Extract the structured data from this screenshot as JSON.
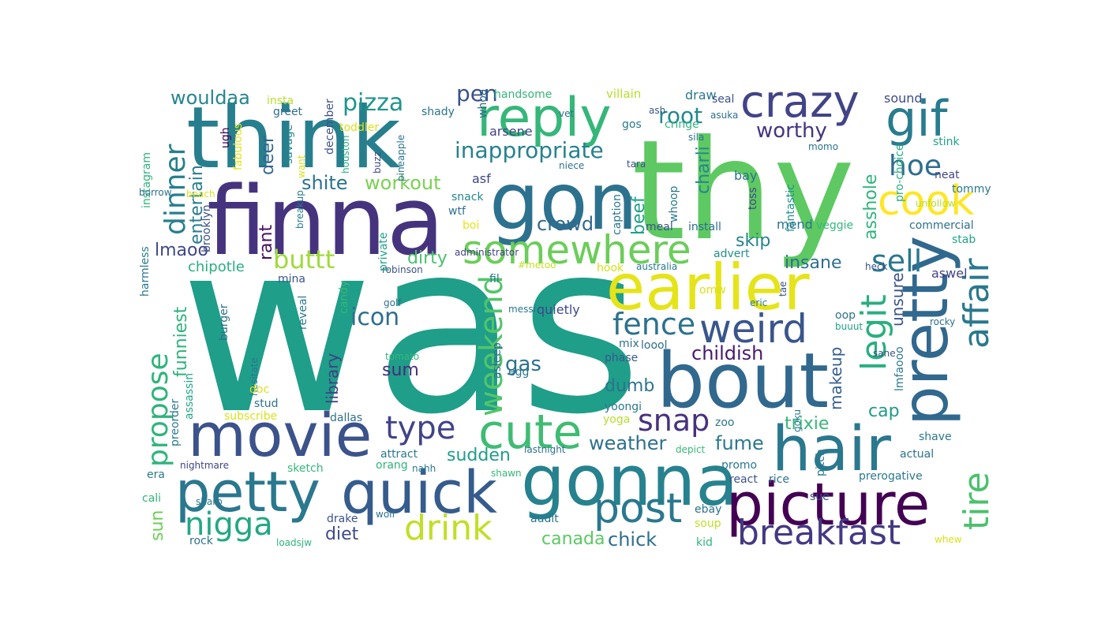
{
  "words": [
    {
      "text": "was",
      "color": "#1f9e89"
    },
    {
      "text": "thy",
      "color": "#5ec962"
    },
    {
      "text": "finna",
      "color": "#46337e"
    },
    {
      "text": "think",
      "color": "#277f8e"
    },
    {
      "text": "gon",
      "color": "#2c728e"
    },
    {
      "text": "bout",
      "color": "#31688e"
    },
    {
      "text": "earlier",
      "color": "#e5e419"
    },
    {
      "text": "gonna",
      "color": "#26828e"
    },
    {
      "text": "movie",
      "color": "#3b528b"
    },
    {
      "text": "hair",
      "color": "#2a788e"
    },
    {
      "text": "picture",
      "color": "#440154"
    },
    {
      "text": "pretty",
      "color": "#31688e"
    },
    {
      "text": "quick",
      "color": "#365c8d"
    },
    {
      "text": "petty",
      "color": "#2a788e"
    },
    {
      "text": "reply",
      "color": "#35b779"
    },
    {
      "text": "crazy",
      "color": "#414487"
    },
    {
      "text": "gif",
      "color": "#287c8e"
    },
    {
      "text": "cook",
      "color": "#fde725"
    },
    {
      "text": "somewhere",
      "color": "#6ccd5a"
    },
    {
      "text": "cute",
      "color": "#3fbc73"
    },
    {
      "text": "weird",
      "color": "#39568c"
    },
    {
      "text": "post",
      "color": "#2a788e"
    },
    {
      "text": "breakfast",
      "color": "#443983"
    },
    {
      "text": "weekend",
      "color": "#52c569"
    },
    {
      "text": "legit",
      "color": "#29af7f"
    },
    {
      "text": "affair",
      "color": "#2a788e"
    },
    {
      "text": "tire",
      "color": "#4ac16d"
    },
    {
      "text": "drink",
      "color": "#c0df25"
    },
    {
      "text": "nigga",
      "color": "#22a884"
    },
    {
      "text": "dinner",
      "color": "#277f8e"
    },
    {
      "text": "propose",
      "color": "#2fb47c"
    },
    {
      "text": "type",
      "color": "#414487"
    },
    {
      "text": "snap",
      "color": "#46327e"
    },
    {
      "text": "fence",
      "color": "#2c728e"
    },
    {
      "text": "sell",
      "color": "#2a788e"
    },
    {
      "text": "hoe",
      "color": "#2e6e8e"
    },
    {
      "text": "buttt",
      "color": "#a0da39"
    },
    {
      "text": "inappropriate",
      "color": "#26828e"
    },
    {
      "text": "pizza",
      "color": "#1f958b"
    },
    {
      "text": "pen",
      "color": "#3b528b"
    },
    {
      "text": "wouldaa",
      "color": "#25858e"
    },
    {
      "text": "root",
      "color": "#23888e"
    },
    {
      "text": "worthy",
      "color": "#463480"
    },
    {
      "text": "icon",
      "color": "#2e6e8e"
    },
    {
      "text": "workout",
      "color": "#7ad151"
    },
    {
      "text": "shite",
      "color": "#2c728e"
    },
    {
      "text": "beef",
      "color": "#1fa188"
    },
    {
      "text": "crowd",
      "color": "#31688e"
    },
    {
      "text": "childish",
      "color": "#481b6d"
    },
    {
      "text": "weather",
      "color": "#2d708e"
    },
    {
      "text": "fume",
      "color": "#2a788e"
    },
    {
      "text": "sudden",
      "color": "#1f9e89"
    },
    {
      "text": "canada",
      "color": "#5cc863"
    },
    {
      "text": "chick",
      "color": "#2e6e8e"
    },
    {
      "text": "diet",
      "color": "#3e4a89"
    },
    {
      "text": "dumb",
      "color": "#2b748e"
    },
    {
      "text": "gas",
      "color": "#2c728e"
    },
    {
      "text": "sum",
      "color": "#472d7b"
    },
    {
      "text": "lmaoo",
      "color": "#3f4788"
    },
    {
      "text": "rant",
      "color": "#471063"
    },
    {
      "text": "deer",
      "color": "#32658e"
    },
    {
      "text": "entertain",
      "color": "#287d8e"
    },
    {
      "text": "funniest",
      "color": "#2db27d"
    },
    {
      "text": "dirty",
      "color": "#4ac16d"
    },
    {
      "text": "library",
      "color": "#433e85"
    },
    {
      "text": "insane",
      "color": "#2e6f8e"
    },
    {
      "text": "skip",
      "color": "#25848e"
    },
    {
      "text": "makeup",
      "color": "#355e8d"
    },
    {
      "text": "cap",
      "color": "#1f9a8a"
    },
    {
      "text": "asshole",
      "color": "#2fb47c"
    },
    {
      "text": "unsure",
      "color": "#3a548c"
    },
    {
      "text": "charli",
      "color": "#24878e"
    },
    {
      "text": "trixie",
      "color": "#35b779"
    },
    {
      "text": "chipotle",
      "color": "#29af7f"
    },
    {
      "text": "sun",
      "color": "#6ece58"
    },
    {
      "text": "legit",
      "color": "#29af7f"
    },
    {
      "text": "handsome",
      "color": "#34b679"
    },
    {
      "text": "villain",
      "color": "#b5de2b"
    },
    {
      "text": "draw",
      "color": "#2a788e"
    },
    {
      "text": "seal",
      "color": "#3b528b"
    },
    {
      "text": "sound",
      "color": "#3e4a89"
    },
    {
      "text": "insta",
      "color": "#b8de29"
    },
    {
      "text": "greet",
      "color": "#2e6e8e"
    },
    {
      "text": "savage",
      "color": "#25848e"
    },
    {
      "text": "december",
      "color": "#3b528b"
    },
    {
      "text": "fabulous",
      "color": "#e5e419"
    },
    {
      "text": "instagram",
      "color": "#2fb47c"
    },
    {
      "text": "ugh",
      "color": "#440154"
    },
    {
      "text": "brooklyn",
      "color": "#3b528b"
    },
    {
      "text": "toddler",
      "color": "#d8e219"
    },
    {
      "text": "houston",
      "color": "#29af7f"
    },
    {
      "text": "buzz",
      "color": "#3e4a89"
    },
    {
      "text": "pineapple",
      "color": "#2c728e"
    },
    {
      "text": "shady",
      "color": "#2c728e"
    },
    {
      "text": "whoa",
      "color": "#31688e"
    },
    {
      "text": "arsene",
      "color": "#414487"
    },
    {
      "text": "vet",
      "color": "#2c728e"
    },
    {
      "text": "gos",
      "color": "#2a788e"
    },
    {
      "text": "cringe",
      "color": "#2fb47c"
    },
    {
      "text": "ash",
      "color": "#38598c"
    },
    {
      "text": "asuka",
      "color": "#2e6e8e"
    },
    {
      "text": "sila",
      "color": "#2c728e"
    },
    {
      "text": "tara",
      "color": "#3b528b"
    },
    {
      "text": "whoop",
      "color": "#2a788e"
    },
    {
      "text": "fantastic",
      "color": "#20928c"
    },
    {
      "text": "momo",
      "color": "#2c728e"
    },
    {
      "text": "stink",
      "color": "#1fa188"
    },
    {
      "text": "neat",
      "color": "#414487"
    },
    {
      "text": "tommy",
      "color": "#2a788e"
    },
    {
      "text": "unfollow",
      "color": "#b5de2b"
    },
    {
      "text": "pro-choice",
      "color": "#27ad81"
    },
    {
      "text": "bay",
      "color": "#2c728e"
    },
    {
      "text": "toss",
      "color": "#404588"
    },
    {
      "text": "mend",
      "color": "#2b748e"
    },
    {
      "text": "veggie",
      "color": "#35b779"
    },
    {
      "text": "commercial",
      "color": "#2d708e"
    },
    {
      "text": "stab",
      "color": "#20a486"
    },
    {
      "text": "heck",
      "color": "#3b528b"
    },
    {
      "text": "aswel",
      "color": "#414487"
    },
    {
      "text": "borrow",
      "color": "#2e6e8e"
    },
    {
      "text": "beach",
      "color": "#d8e219"
    },
    {
      "text": "breakup",
      "color": "#287c8e"
    },
    {
      "text": "asf",
      "color": "#414487"
    },
    {
      "text": "snack",
      "color": "#25848e"
    },
    {
      "text": "wtf",
      "color": "#2c728e"
    },
    {
      "text": "boi",
      "color": "#e5e419"
    },
    {
      "text": "niece",
      "color": "#2c728e"
    },
    {
      "text": "caption",
      "color": "#2a788e"
    },
    {
      "text": "meal",
      "color": "#3b528b"
    },
    {
      "text": "install",
      "color": "#2e6e8e"
    },
    {
      "text": "advert",
      "color": "#21918c"
    },
    {
      "text": "administrator",
      "color": "#414487"
    },
    {
      "text": "#metoo",
      "color": "#c0df25"
    },
    {
      "text": "australia",
      "color": "#2a788e"
    },
    {
      "text": "hook",
      "color": "#d2e21b"
    },
    {
      "text": "fil",
      "color": "#2a788e"
    },
    {
      "text": "robinson",
      "color": "#3b528b"
    },
    {
      "text": "private",
      "color": "#1fa188"
    },
    {
      "text": "harmless",
      "color": "#2a788e"
    },
    {
      "text": "mina",
      "color": "#3b528b"
    },
    {
      "text": "reveal",
      "color": "#2a788e"
    },
    {
      "text": "candy",
      "color": "#35b779"
    },
    {
      "text": "golf",
      "color": "#2c728e"
    },
    {
      "text": "messi",
      "color": "#2a788e"
    },
    {
      "text": "quietly",
      "color": "#3e4a89"
    },
    {
      "text": "mix",
      "color": "#2c728e"
    },
    {
      "text": "loool",
      "color": "#2e6e8e"
    },
    {
      "text": "phase",
      "color": "#38598c"
    },
    {
      "text": "omw",
      "color": "#d8e219"
    },
    {
      "text": "tae",
      "color": "#3b528b"
    },
    {
      "text": "eric",
      "color": "#2a788e"
    },
    {
      "text": "oop",
      "color": "#2c728e"
    },
    {
      "text": "buuut",
      "color": "#1fa188"
    },
    {
      "text": "rocky",
      "color": "#2d708e"
    },
    {
      "text": "lmfaooo",
      "color": "#2a788e"
    },
    {
      "text": "sane",
      "color": "#3b528b"
    },
    {
      "text": "goku",
      "color": "#2a788e"
    },
    {
      "text": "hesitate",
      "color": "#2a788e"
    },
    {
      "text": "tomato",
      "color": "#35b779"
    },
    {
      "text": "asleep",
      "color": "#2d708e"
    },
    {
      "text": "egg",
      "color": "#2c728e"
    },
    {
      "text": "yoongi",
      "color": "#2a788e"
    },
    {
      "text": "yoga",
      "color": "#b5de2b"
    },
    {
      "text": "zoo",
      "color": "#2a788e"
    },
    {
      "text": "assassin",
      "color": "#20a486"
    },
    {
      "text": "burger",
      "color": "#2c728e"
    },
    {
      "text": "preorder",
      "color": "#2a788e"
    },
    {
      "text": "doc",
      "color": "#d8e219"
    },
    {
      "text": "stud",
      "color": "#2c728e"
    },
    {
      "text": "subscribe",
      "color": "#d8e219"
    },
    {
      "text": "dallas",
      "color": "#2c728e"
    },
    {
      "text": "nightmare",
      "color": "#414487"
    },
    {
      "text": "sketch",
      "color": "#35b779"
    },
    {
      "text": "attract",
      "color": "#2a788e"
    },
    {
      "text": "orang",
      "color": "#2fb47c"
    },
    {
      "text": "nahh",
      "color": "#2a788e"
    },
    {
      "text": "lastnight",
      "color": "#2d708e"
    },
    {
      "text": "depict",
      "color": "#35b779"
    },
    {
      "text": "promo",
      "color": "#2a788e"
    },
    {
      "text": "react",
      "color": "#3b528b"
    },
    {
      "text": "rice",
      "color": "#2c728e"
    },
    {
      "text": "pitch",
      "color": "#2a788e"
    },
    {
      "text": "shave",
      "color": "#2a788e"
    },
    {
      "text": "actual",
      "color": "#2c728e"
    },
    {
      "text": "prerogative",
      "color": "#2a788e"
    },
    {
      "text": "sue",
      "color": "#3b528b"
    },
    {
      "text": "era",
      "color": "#2a788e"
    },
    {
      "text": "cali",
      "color": "#2fb47c"
    },
    {
      "text": "shawn",
      "color": "#35b779"
    },
    {
      "text": "ebay",
      "color": "#2c728e"
    },
    {
      "text": "drake",
      "color": "#3b528b"
    },
    {
      "text": "wolf",
      "color": "#2c728e"
    },
    {
      "text": "sharp",
      "color": "#2a788e"
    },
    {
      "text": "audit",
      "color": "#2c728e"
    },
    {
      "text": "soup",
      "color": "#c0df25"
    },
    {
      "text": "rock",
      "color": "#2c728e"
    },
    {
      "text": "loadsjw",
      "color": "#2fb47c"
    },
    {
      "text": "kid",
      "color": "#2fb47c"
    },
    {
      "text": "whew",
      "color": "#d8e219"
    },
    {
      "text": "want",
      "color": "#d8e219"
    }
  ]
}
